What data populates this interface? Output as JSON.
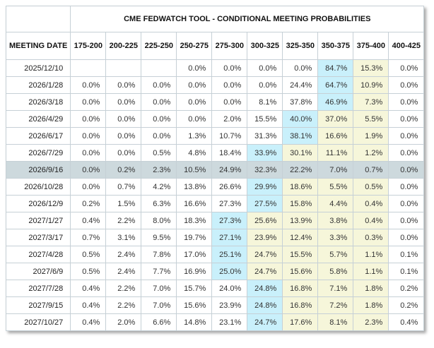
{
  "title": "CME FEDWATCH TOOL - CONDITIONAL MEETING PROBABILITIES",
  "table": {
    "date_column_header": "MEETING DATE",
    "rate_columns": [
      "175-200",
      "200-225",
      "225-250",
      "250-275",
      "275-300",
      "300-325",
      "325-350",
      "350-375",
      "375-400",
      "400-425"
    ],
    "rows": [
      {
        "date": "2025/12/10",
        "selected": false,
        "values": [
          "",
          "",
          "",
          "0.0%",
          "0.0%",
          "0.0%",
          "0.0%",
          "84.7%",
          "15.3%",
          "0.0%"
        ],
        "hl": [
          "",
          "",
          "",
          "",
          "",
          "",
          "",
          "blue",
          "yellow",
          ""
        ]
      },
      {
        "date": "2026/1/28",
        "selected": false,
        "values": [
          "0.0%",
          "0.0%",
          "0.0%",
          "0.0%",
          "0.0%",
          "0.0%",
          "24.4%",
          "64.7%",
          "10.9%",
          "0.0%"
        ],
        "hl": [
          "",
          "",
          "",
          "",
          "",
          "",
          "",
          "blue",
          "yellow",
          ""
        ]
      },
      {
        "date": "2026/3/18",
        "selected": false,
        "values": [
          "0.0%",
          "0.0%",
          "0.0%",
          "0.0%",
          "0.0%",
          "8.1%",
          "37.8%",
          "46.9%",
          "7.3%",
          "0.0%"
        ],
        "hl": [
          "",
          "",
          "",
          "",
          "",
          "",
          "",
          "blue",
          "yellow",
          ""
        ]
      },
      {
        "date": "2026/4/29",
        "selected": false,
        "values": [
          "0.0%",
          "0.0%",
          "0.0%",
          "0.0%",
          "2.0%",
          "15.5%",
          "40.0%",
          "37.0%",
          "5.5%",
          "0.0%"
        ],
        "hl": [
          "",
          "",
          "",
          "",
          "",
          "",
          "blue",
          "yellow",
          "yellow",
          ""
        ]
      },
      {
        "date": "2026/6/17",
        "selected": false,
        "values": [
          "0.0%",
          "0.0%",
          "0.0%",
          "1.3%",
          "10.7%",
          "31.3%",
          "38.1%",
          "16.6%",
          "1.9%",
          "0.0%"
        ],
        "hl": [
          "",
          "",
          "",
          "",
          "",
          "",
          "blue",
          "yellow",
          "yellow",
          ""
        ]
      },
      {
        "date": "2026/7/29",
        "selected": false,
        "values": [
          "0.0%",
          "0.0%",
          "0.5%",
          "4.8%",
          "18.4%",
          "33.9%",
          "30.1%",
          "11.1%",
          "1.2%",
          "0.0%"
        ],
        "hl": [
          "",
          "",
          "",
          "",
          "",
          "blue",
          "yellow",
          "yellow",
          "yellow",
          ""
        ]
      },
      {
        "date": "2026/9/16",
        "selected": true,
        "values": [
          "0.0%",
          "0.2%",
          "2.3%",
          "10.5%",
          "24.9%",
          "32.3%",
          "22.2%",
          "7.0%",
          "0.7%",
          "0.0%"
        ],
        "hl": [
          "",
          "",
          "",
          "",
          "",
          "",
          "",
          "",
          "",
          ""
        ]
      },
      {
        "date": "2026/10/28",
        "selected": false,
        "values": [
          "0.0%",
          "0.7%",
          "4.2%",
          "13.8%",
          "26.6%",
          "29.9%",
          "18.6%",
          "5.5%",
          "0.5%",
          "0.0%"
        ],
        "hl": [
          "",
          "",
          "",
          "",
          "",
          "blue",
          "yellow",
          "yellow",
          "yellow",
          ""
        ]
      },
      {
        "date": "2026/12/9",
        "selected": false,
        "values": [
          "0.2%",
          "1.5%",
          "6.3%",
          "16.6%",
          "27.3%",
          "27.5%",
          "15.8%",
          "4.4%",
          "0.4%",
          "0.0%"
        ],
        "hl": [
          "",
          "",
          "",
          "",
          "",
          "blue",
          "yellow",
          "yellow",
          "yellow",
          ""
        ]
      },
      {
        "date": "2027/1/27",
        "selected": false,
        "values": [
          "0.4%",
          "2.2%",
          "8.0%",
          "18.3%",
          "27.3%",
          "25.6%",
          "13.9%",
          "3.8%",
          "0.4%",
          "0.0%"
        ],
        "hl": [
          "",
          "",
          "",
          "",
          "blue",
          "yellow",
          "yellow",
          "yellow",
          "yellow",
          ""
        ]
      },
      {
        "date": "2027/3/17",
        "selected": false,
        "values": [
          "0.7%",
          "3.1%",
          "9.5%",
          "19.7%",
          "27.1%",
          "23.9%",
          "12.4%",
          "3.3%",
          "0.3%",
          "0.0%"
        ],
        "hl": [
          "",
          "",
          "",
          "",
          "blue",
          "yellow",
          "yellow",
          "yellow",
          "yellow",
          ""
        ]
      },
      {
        "date": "2027/4/28",
        "selected": false,
        "values": [
          "0.5%",
          "2.4%",
          "7.8%",
          "17.0%",
          "25.1%",
          "24.7%",
          "15.5%",
          "5.7%",
          "1.1%",
          "0.1%"
        ],
        "hl": [
          "",
          "",
          "",
          "",
          "blue",
          "yellow",
          "yellow",
          "yellow",
          "yellow",
          ""
        ]
      },
      {
        "date": "2027/6/9",
        "selected": false,
        "values": [
          "0.5%",
          "2.4%",
          "7.7%",
          "16.9%",
          "25.0%",
          "24.7%",
          "15.6%",
          "5.8%",
          "1.1%",
          "0.1%"
        ],
        "hl": [
          "",
          "",
          "",
          "",
          "blue",
          "yellow",
          "yellow",
          "yellow",
          "yellow",
          ""
        ]
      },
      {
        "date": "2027/7/28",
        "selected": false,
        "values": [
          "0.4%",
          "2.2%",
          "7.0%",
          "15.7%",
          "24.0%",
          "24.8%",
          "16.8%",
          "7.1%",
          "1.8%",
          "0.2%"
        ],
        "hl": [
          "",
          "",
          "",
          "",
          "",
          "blue",
          "yellow",
          "yellow",
          "yellow",
          ""
        ]
      },
      {
        "date": "2027/9/15",
        "selected": false,
        "values": [
          "0.4%",
          "2.2%",
          "7.0%",
          "15.6%",
          "23.9%",
          "24.8%",
          "16.8%",
          "7.2%",
          "1.8%",
          "0.2%"
        ],
        "hl": [
          "",
          "",
          "",
          "",
          "",
          "blue",
          "yellow",
          "yellow",
          "yellow",
          ""
        ]
      },
      {
        "date": "2027/10/27",
        "selected": false,
        "values": [
          "0.4%",
          "2.0%",
          "6.6%",
          "14.8%",
          "23.1%",
          "24.7%",
          "17.6%",
          "8.1%",
          "2.3%",
          "0.4%"
        ],
        "hl": [
          "",
          "",
          "",
          "",
          "",
          "blue",
          "yellow",
          "yellow",
          "yellow",
          ""
        ]
      }
    ]
  },
  "colors": {
    "max_highlight": "#c9f0fb",
    "path_highlight": "#f6f6da",
    "selected_row": "#cdd9dd",
    "border": "#c6d0d6"
  }
}
